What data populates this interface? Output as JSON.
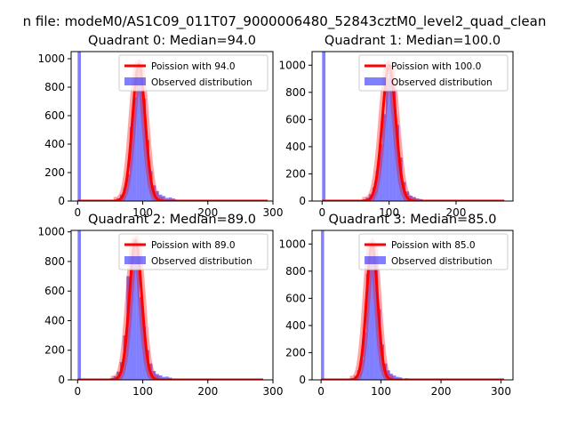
{
  "figure": {
    "suptitle": "n file: modeM0/AS1C09_011T07_9000006480_52843cztM0_level2_quad_clean",
    "colors": {
      "hist": "#0000ff",
      "fit": "#ff0000",
      "axis": "#000000",
      "background": "#ffffff"
    }
  },
  "chart_data": [
    {
      "type": "bar",
      "title": "Quadrant 0: Median=94.0",
      "median": 94.0,
      "xlim": [
        -10,
        300
      ],
      "ylim": [
        0,
        1050
      ],
      "xticks": [
        0,
        100,
        200,
        300
      ],
      "yticks": [
        0,
        200,
        400,
        600,
        800,
        1000
      ],
      "x_max_data": 292,
      "legend": {
        "position": "top-right",
        "fit_label": "Poission with 94.0",
        "hist_label": "Observed distribution"
      },
      "spike": {
        "x": 0,
        "height": 1050
      },
      "histogram": [
        {
          "x": 50,
          "y": 5
        },
        {
          "x": 55,
          "y": 10
        },
        {
          "x": 60,
          "y": 20
        },
        {
          "x": 65,
          "y": 45
        },
        {
          "x": 70,
          "y": 90
        },
        {
          "x": 75,
          "y": 190
        },
        {
          "x": 80,
          "y": 520
        },
        {
          "x": 85,
          "y": 730
        },
        {
          "x": 90,
          "y": 920
        },
        {
          "x": 95,
          "y": 960
        },
        {
          "x": 100,
          "y": 720
        },
        {
          "x": 105,
          "y": 430
        },
        {
          "x": 110,
          "y": 210
        },
        {
          "x": 115,
          "y": 110
        },
        {
          "x": 120,
          "y": 70
        },
        {
          "x": 125,
          "y": 45
        },
        {
          "x": 130,
          "y": 35
        },
        {
          "x": 135,
          "y": 22
        },
        {
          "x": 140,
          "y": 25
        },
        {
          "x": 145,
          "y": 18
        },
        {
          "x": 150,
          "y": 10
        },
        {
          "x": 160,
          "y": 6
        }
      ]
    },
    {
      "type": "bar",
      "title": "Quadrant 1: Median=100.0",
      "median": 100.0,
      "xlim": [
        -15,
        285
      ],
      "ylim": [
        0,
        1100
      ],
      "xticks": [
        0,
        100,
        200
      ],
      "yticks": [
        0,
        200,
        400,
        600,
        800,
        1000
      ],
      "x_max_data": 272,
      "legend": {
        "position": "top-right",
        "fit_label": "Poission with 100.0",
        "hist_label": "Observed distribution"
      },
      "spike": {
        "x": 0,
        "height": 1100
      },
      "histogram": [
        {
          "x": 55,
          "y": 6
        },
        {
          "x": 60,
          "y": 12
        },
        {
          "x": 65,
          "y": 25
        },
        {
          "x": 70,
          "y": 50
        },
        {
          "x": 75,
          "y": 100
        },
        {
          "x": 80,
          "y": 220
        },
        {
          "x": 85,
          "y": 420
        },
        {
          "x": 90,
          "y": 640
        },
        {
          "x": 95,
          "y": 900
        },
        {
          "x": 100,
          "y": 1000
        },
        {
          "x": 105,
          "y": 820
        },
        {
          "x": 110,
          "y": 560
        },
        {
          "x": 115,
          "y": 320
        },
        {
          "x": 120,
          "y": 140
        },
        {
          "x": 125,
          "y": 70
        },
        {
          "x": 130,
          "y": 40
        },
        {
          "x": 135,
          "y": 28
        },
        {
          "x": 140,
          "y": 20
        },
        {
          "x": 145,
          "y": 15
        },
        {
          "x": 155,
          "y": 8
        }
      ]
    },
    {
      "type": "bar",
      "title": "Quadrant 2: Median=89.0",
      "median": 89.0,
      "xlim": [
        -10,
        300
      ],
      "ylim": [
        0,
        1010
      ],
      "xticks": [
        0,
        100,
        200,
        300
      ],
      "yticks": [
        0,
        200,
        400,
        600,
        800,
        1000
      ],
      "x_max_data": 285,
      "legend": {
        "position": "top-right",
        "fit_label": "Poission with 89.0",
        "hist_label": "Observed distribution"
      },
      "spike": {
        "x": 0,
        "height": 1010
      },
      "histogram": [
        {
          "x": 45,
          "y": 6
        },
        {
          "x": 50,
          "y": 12
        },
        {
          "x": 55,
          "y": 25
        },
        {
          "x": 60,
          "y": 55
        },
        {
          "x": 65,
          "y": 120
        },
        {
          "x": 70,
          "y": 300
        },
        {
          "x": 75,
          "y": 700
        },
        {
          "x": 80,
          "y": 760
        },
        {
          "x": 85,
          "y": 940
        },
        {
          "x": 90,
          "y": 880
        },
        {
          "x": 95,
          "y": 560
        },
        {
          "x": 100,
          "y": 360
        },
        {
          "x": 105,
          "y": 200
        },
        {
          "x": 110,
          "y": 110
        },
        {
          "x": 115,
          "y": 60
        },
        {
          "x": 120,
          "y": 40
        },
        {
          "x": 125,
          "y": 30
        },
        {
          "x": 130,
          "y": 20
        },
        {
          "x": 135,
          "y": 22
        },
        {
          "x": 140,
          "y": 15
        },
        {
          "x": 150,
          "y": 8
        }
      ]
    },
    {
      "type": "bar",
      "title": "Quadrant 3: Median=85.0",
      "median": 85.0,
      "xlim": [
        -15,
        320
      ],
      "ylim": [
        0,
        1100
      ],
      "xticks": [
        0,
        100,
        200,
        300
      ],
      "yticks": [
        0,
        200,
        400,
        600,
        800,
        1000
      ],
      "x_max_data": 305,
      "legend": {
        "position": "top-right",
        "fit_label": "Poission with 85.0",
        "hist_label": "Observed distribution"
      },
      "spike": {
        "x": 0,
        "height": 1100
      },
      "histogram": [
        {
          "x": 45,
          "y": 6
        },
        {
          "x": 50,
          "y": 12
        },
        {
          "x": 55,
          "y": 30
        },
        {
          "x": 60,
          "y": 70
        },
        {
          "x": 65,
          "y": 150
        },
        {
          "x": 70,
          "y": 350
        },
        {
          "x": 75,
          "y": 780
        },
        {
          "x": 80,
          "y": 960
        },
        {
          "x": 85,
          "y": 1000
        },
        {
          "x": 90,
          "y": 850
        },
        {
          "x": 95,
          "y": 520
        },
        {
          "x": 100,
          "y": 260
        },
        {
          "x": 105,
          "y": 120
        },
        {
          "x": 110,
          "y": 70
        },
        {
          "x": 115,
          "y": 45
        },
        {
          "x": 120,
          "y": 32
        },
        {
          "x": 125,
          "y": 22
        },
        {
          "x": 130,
          "y": 18
        },
        {
          "x": 140,
          "y": 12
        },
        {
          "x": 150,
          "y": 6
        }
      ]
    }
  ]
}
